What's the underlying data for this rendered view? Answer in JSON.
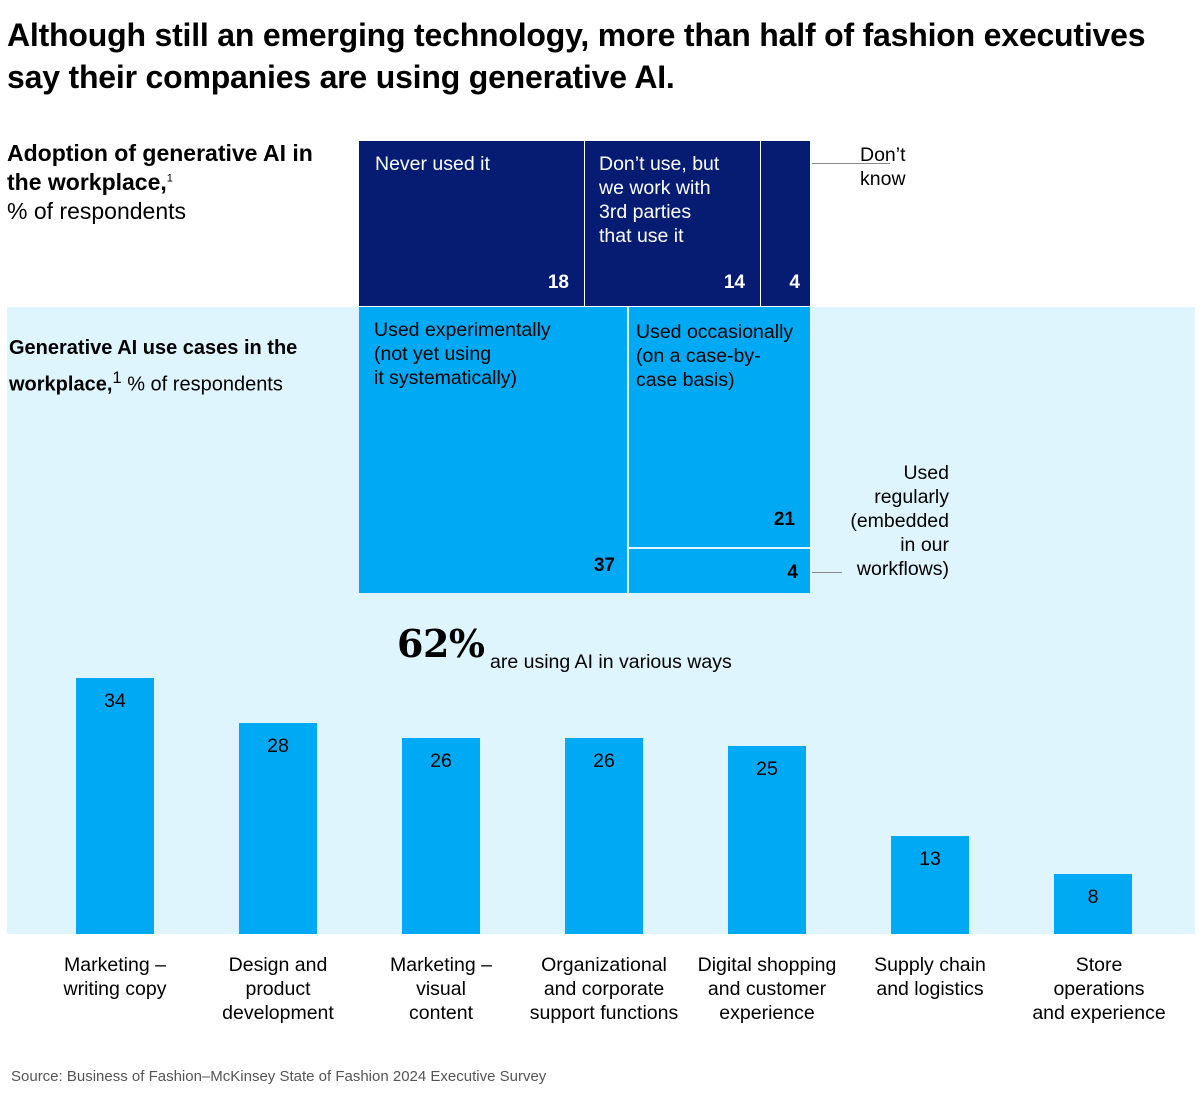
{
  "title": "Although still an emerging technology, more than half of fashion executives say their companies are using generative AI.",
  "adoption_label": {
    "bold": "Adoption of generative AI in the workplace,",
    "sup": "1",
    "rest": "% of respondents"
  },
  "usecase_label": {
    "bold": "Generative AI use cases in the workplace,",
    "sup": "1",
    "rest": " % of respondents"
  },
  "highlight": {
    "value": "62%",
    "text": "are using AI in various ways"
  },
  "colors": {
    "dark_navy": "#051c72",
    "bright_blue": "#00a9f4",
    "panel_bg": "#dff5fd"
  },
  "chart_data": [
    {
      "type": "treemap",
      "series": [
        {
          "name": "Never used it",
          "value": 18,
          "group": "not using"
        },
        {
          "name": "Don’t use, but we work with 3rd parties that use it",
          "value": 14,
          "group": "not using"
        },
        {
          "name": "Don’t know",
          "value": 4,
          "group": "not using"
        },
        {
          "name": "Used experimentally (not yet using it systematically)",
          "value": 37,
          "group": "using"
        },
        {
          "name": "Used occasionally (on a case-by-case basis)",
          "value": 21,
          "group": "using"
        },
        {
          "name": "Used regularly (embedded in our workflows)",
          "value": 4,
          "group": "using"
        }
      ]
    },
    {
      "type": "bar",
      "categories": [
        "Marketing –\nwriting copy",
        "Design and\nproduct\ndevelopment",
        "Marketing –\nvisual\ncontent",
        "Organizational\nand corporate\nsupport functions",
        "Digital shopping\nand customer\nexperience",
        "Supply chain\nand logistics",
        "Store\noperations\nand experience"
      ],
      "values": [
        34,
        28,
        26,
        26,
        25,
        13,
        8
      ],
      "ylim": [
        0,
        34
      ]
    }
  ],
  "treemap_labels": {
    "never": "Never used it",
    "dont_use": "Don’t use, but\nwe work with\n3rd parties\nthat use it",
    "dont_know": "Don’t\nknow",
    "experimental": "Used experimentally\n(not yet using\nit systematically)",
    "occasional": "Used occasionally\n(on a case-by-\ncase basis)",
    "regular": "Used\nregularly\n(embedded\nin our\nworkflows)"
  },
  "source": "Source: Business of Fashion–McKinsey State of Fashion 2024 Executive Survey"
}
